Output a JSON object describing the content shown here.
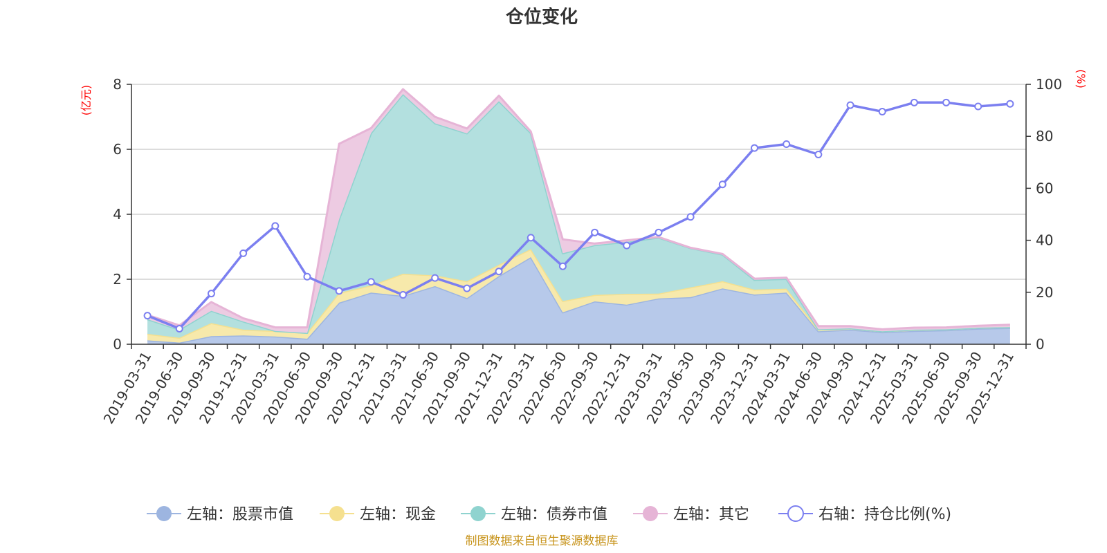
{
  "title": "仓位变化",
  "footer": "制图数据来自恒生聚源数据库",
  "left_axis_unit": "(亿元)",
  "right_axis_unit": "(%)",
  "chart_data": {
    "type": "area",
    "categories": [
      "2019-03-31",
      "2019-06-30",
      "2019-09-30",
      "2019-12-31",
      "2020-03-31",
      "2020-06-30",
      "2020-09-30",
      "2020-12-31",
      "2021-03-31",
      "2021-06-30",
      "2021-09-30",
      "2021-12-31",
      "2022-03-31",
      "2022-06-30",
      "2022-09-30",
      "2022-12-31",
      "2023-03-31",
      "2023-06-30",
      "2023-09-30",
      "2023-12-31",
      "2024-03-31",
      "2024-06-30",
      "2024-09-30",
      "2024-12-31",
      "2025-03-31",
      "2025-06-30",
      "2025-09-30",
      "2025-12-31"
    ],
    "left_axis": {
      "min": 0,
      "max": 8,
      "ticks": [
        0,
        2,
        4,
        6,
        8
      ]
    },
    "right_axis": {
      "min": 0,
      "max": 100,
      "ticks": [
        0,
        20,
        40,
        60,
        80,
        100
      ]
    },
    "grid": true,
    "legend_position": "bottom",
    "stacked": true,
    "series": [
      {
        "name": "左轴：股票市值",
        "axis": "left",
        "color": "#9db5e0",
        "fill": "#b7c9ea",
        "values": [
          0.12,
          0.05,
          0.25,
          0.27,
          0.24,
          0.17,
          1.28,
          1.59,
          1.49,
          1.79,
          1.42,
          2.1,
          2.68,
          0.98,
          1.32,
          1.22,
          1.41,
          1.45,
          1.72,
          1.53,
          1.59,
          0.4,
          0.45,
          0.37,
          0.41,
          0.43,
          0.48,
          0.5
        ]
      },
      {
        "name": "左轴：现金",
        "axis": "left",
        "color": "#f5e08f",
        "fill": "#f7e9ab",
        "values": [
          0.2,
          0.15,
          0.4,
          0.18,
          0.17,
          0.18,
          0.3,
          0.22,
          0.68,
          0.33,
          0.52,
          0.35,
          0.25,
          0.35,
          0.2,
          0.33,
          0.15,
          0.3,
          0.22,
          0.15,
          0.12,
          0.06,
          0.04,
          0.03,
          0.04,
          0.03,
          0.03,
          0.03
        ]
      },
      {
        "name": "左轴：债券市值",
        "axis": "left",
        "color": "#8fd3cf",
        "fill": "#b3e0df",
        "values": [
          0.45,
          0.25,
          0.38,
          0.25,
          0.0,
          0.0,
          2.27,
          4.69,
          5.53,
          4.68,
          4.55,
          5.03,
          3.57,
          1.47,
          1.53,
          1.6,
          1.72,
          1.21,
          0.82,
          0.3,
          0.3,
          0.0,
          0.0,
          0.0,
          0.0,
          0.0,
          0.0,
          0.0
        ]
      },
      {
        "name": "左轴：其它",
        "axis": "left",
        "color": "#e6b4d6",
        "fill": "#edcbe2",
        "values": [
          0.13,
          0.13,
          0.27,
          0.1,
          0.11,
          0.17,
          2.32,
          0.15,
          0.15,
          0.2,
          0.15,
          0.17,
          0.05,
          0.43,
          0.05,
          0.05,
          0.02,
          0.01,
          0.02,
          0.04,
          0.04,
          0.1,
          0.07,
          0.06,
          0.06,
          0.06,
          0.06,
          0.07
        ]
      },
      {
        "name": "右轴：持仓比例(%)",
        "axis": "right",
        "type": "line",
        "color": "#7b7ff0",
        "values": [
          11,
          6,
          19.5,
          35,
          45.5,
          26,
          20.5,
          24,
          19,
          25.5,
          21.5,
          28,
          41,
          30,
          43,
          38,
          43,
          49,
          61.5,
          75.5,
          77,
          73,
          92,
          89.5,
          93,
          93,
          91.5,
          92.5
        ]
      }
    ]
  }
}
